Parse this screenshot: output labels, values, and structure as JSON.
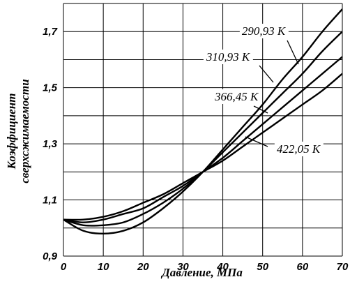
{
  "chart_data": {
    "type": "line",
    "title": "",
    "xlabel": "Давление, МПа",
    "ylabel": [
      "Коэффициент",
      "сверхсжимаемости"
    ],
    "xlim": [
      0,
      70
    ],
    "ylim": [
      0.9,
      1.8
    ],
    "grid": true,
    "x_ticks": [
      0,
      10,
      20,
      30,
      40,
      50,
      60,
      70
    ],
    "x_tick_labels": [
      "0",
      "10",
      "20",
      "30",
      "40",
      "50",
      "60",
      "70"
    ],
    "y_ticks": [
      0.9,
      1.1,
      1.3,
      1.5,
      1.7
    ],
    "y_tick_labels": [
      "0,9",
      "1,1",
      "1,3",
      "1,5",
      "1,7"
    ],
    "series": [
      {
        "name": "290,93 К",
        "x": [
          0,
          5,
          10,
          15,
          20,
          25,
          30,
          35,
          40,
          45,
          50,
          55,
          60,
          65,
          70
        ],
        "y": [
          1.03,
          0.99,
          0.98,
          0.99,
          1.02,
          1.07,
          1.13,
          1.2,
          1.28,
          1.36,
          1.44,
          1.53,
          1.61,
          1.7,
          1.78
        ]
      },
      {
        "name": "310,93 К",
        "x": [
          0,
          5,
          10,
          15,
          20,
          25,
          30,
          35,
          40,
          45,
          50,
          55,
          60,
          65,
          70
        ],
        "y": [
          1.03,
          1.01,
          1.01,
          1.02,
          1.05,
          1.09,
          1.14,
          1.2,
          1.27,
          1.34,
          1.41,
          1.48,
          1.55,
          1.63,
          1.7
        ]
      },
      {
        "name": "366,45 К",
        "x": [
          0,
          5,
          10,
          15,
          20,
          25,
          30,
          35,
          40,
          45,
          50,
          55,
          60,
          65,
          70
        ],
        "y": [
          1.03,
          1.02,
          1.03,
          1.05,
          1.07,
          1.11,
          1.15,
          1.2,
          1.25,
          1.31,
          1.37,
          1.43,
          1.49,
          1.55,
          1.61
        ]
      },
      {
        "name": "422,05 К",
        "x": [
          0,
          5,
          10,
          15,
          20,
          25,
          30,
          35,
          40,
          45,
          50,
          55,
          60,
          65,
          70
        ],
        "y": [
          1.03,
          1.03,
          1.04,
          1.06,
          1.09,
          1.12,
          1.16,
          1.2,
          1.24,
          1.29,
          1.34,
          1.39,
          1.44,
          1.49,
          1.55
        ]
      }
    ]
  }
}
